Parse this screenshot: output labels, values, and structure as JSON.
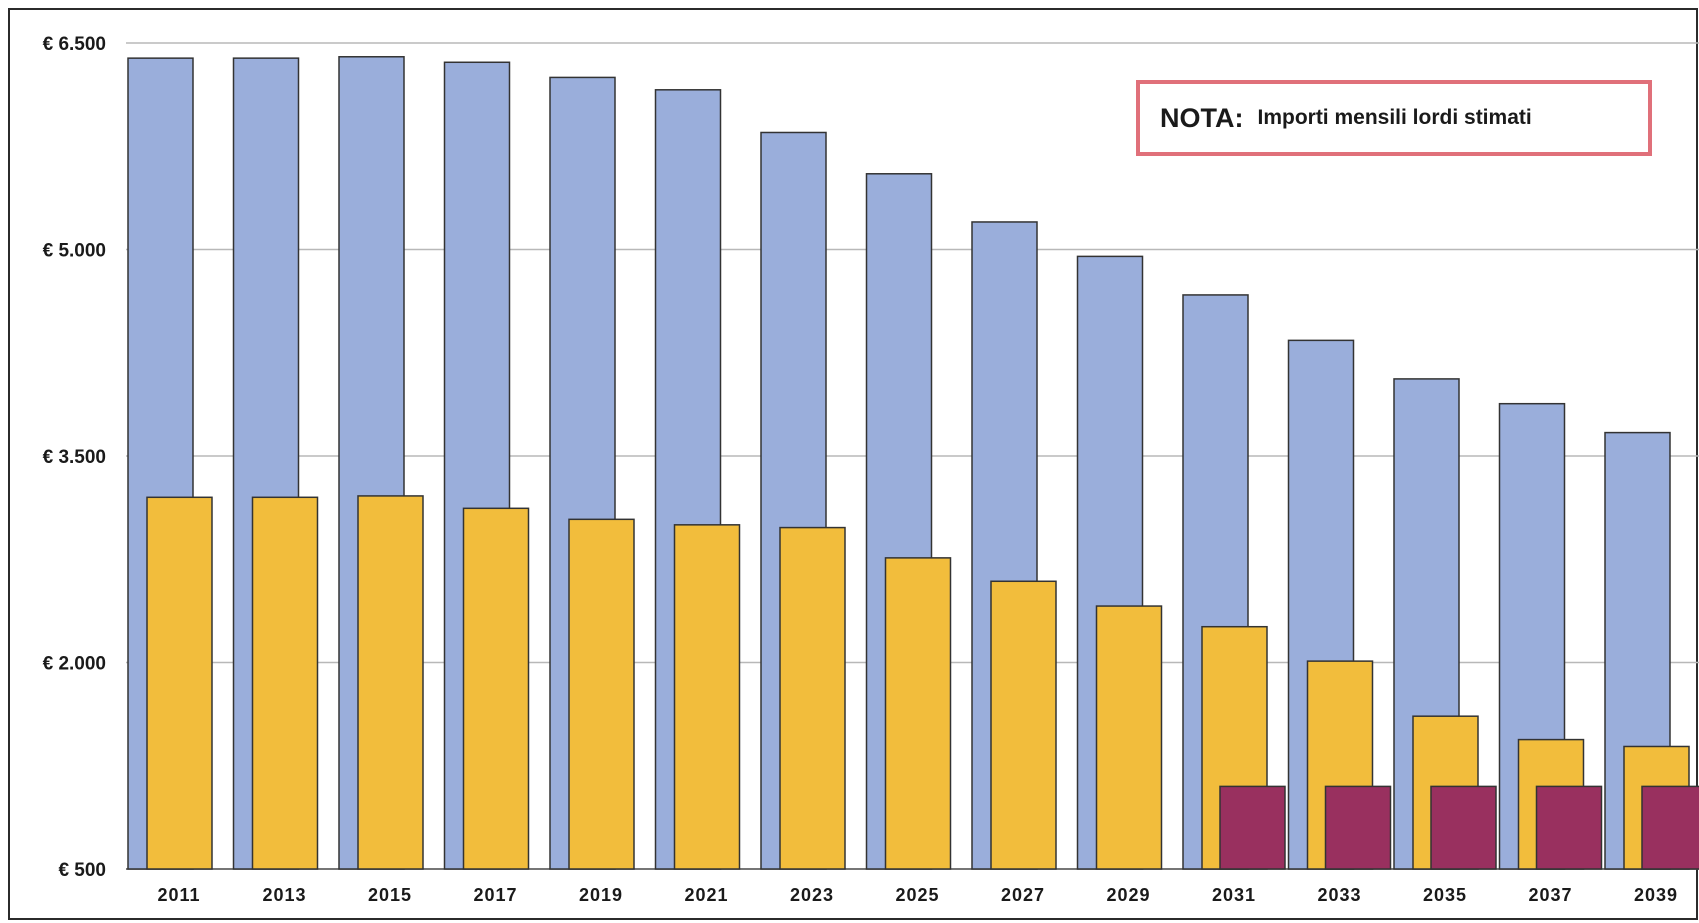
{
  "chart_data": {
    "type": "bar",
    "title": "",
    "xlabel": "",
    "ylabel": "",
    "categories": [
      "2011",
      "2013",
      "2015",
      "2017",
      "2019",
      "2021",
      "2023",
      "2025",
      "2027",
      "2029",
      "2031",
      "2033",
      "2035",
      "2037",
      "2039"
    ],
    "y_ticks": [
      "€ 500",
      "€ 2.000",
      "€ 3.500",
      "€ 5.000",
      "€ 6.500"
    ],
    "y_tick_values": [
      500,
      2000,
      3500,
      5000,
      6500
    ],
    "ylim": [
      500,
      6650
    ],
    "grid": true,
    "series": [
      {
        "color": "#9aaedb",
        "values": [
          6390,
          6390,
          6400,
          6360,
          6250,
          6160,
          5850,
          5550,
          5200,
          4950,
          4670,
          4340,
          4060,
          3880,
          3670
        ]
      },
      {
        "color": "#f2bd3c",
        "values": [
          3200,
          3200,
          3210,
          3120,
          3040,
          3000,
          2980,
          2760,
          2590,
          2410,
          2260,
          2010,
          1610,
          1440,
          1390
        ]
      },
      {
        "color": "#99305f",
        "values": [
          null,
          null,
          null,
          null,
          null,
          null,
          null,
          null,
          null,
          null,
          1100,
          1100,
          1100,
          1100,
          1100
        ]
      }
    ]
  },
  "note": {
    "title": "NOTA:",
    "text": "Importi mensili lordi stimati"
  }
}
